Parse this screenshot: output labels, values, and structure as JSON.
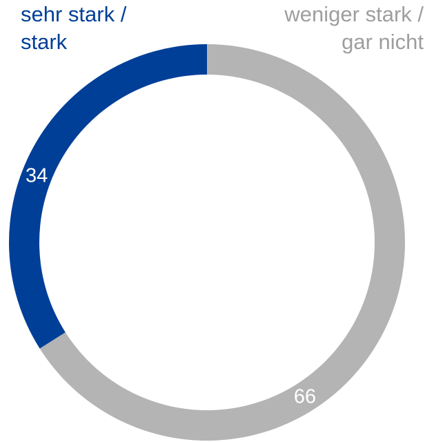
{
  "chart_data": {
    "type": "pie",
    "categories": [
      "sehr stark / stark",
      "weniger stark / gar nicht"
    ],
    "values": [
      34,
      66
    ],
    "value_labels": [
      "34",
      "66"
    ],
    "colors": [
      "#003F98",
      "#B4B4B4"
    ],
    "legend": {
      "placement": "top",
      "entries": [
        {
          "text": "sehr stark /\nstark",
          "color": "#003F98"
        },
        {
          "text": "weniger stark /\ngar nicht",
          "color": "#9E9E9E"
        }
      ]
    },
    "title": "",
    "xlabel": "",
    "ylabel": ""
  }
}
